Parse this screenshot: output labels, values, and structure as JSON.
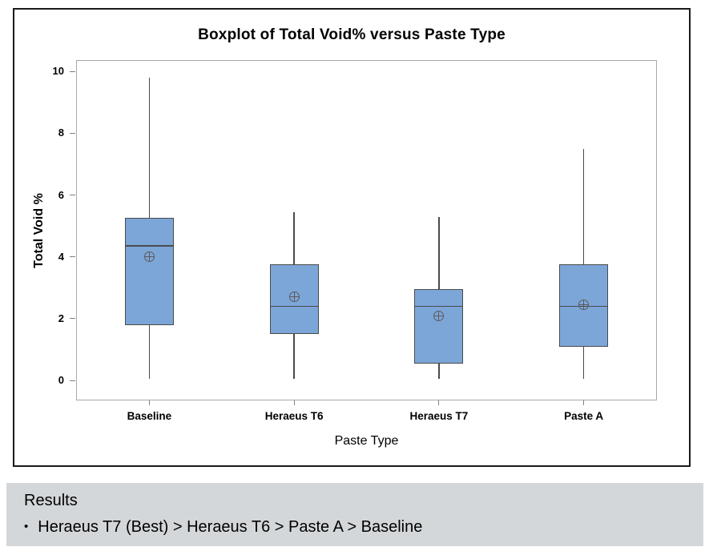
{
  "chart_data": {
    "type": "boxplot",
    "title": "Boxplot of Total Void% versus Paste Type",
    "xlabel": "Paste Type",
    "ylabel": "Total Void %",
    "ylim": [
      0,
      10
    ],
    "yticks": [
      0,
      2,
      4,
      6,
      8,
      10
    ],
    "grid": "off",
    "legend": "none",
    "categories": [
      "Baseline",
      "Heraeus T6",
      "Heraeus T7",
      "Paste A"
    ],
    "series": [
      {
        "name": "Baseline",
        "whisker_low": 0.05,
        "q1": 1.8,
        "median": 4.35,
        "q3": 5.25,
        "whisker_high": 9.8,
        "mean": 4.0
      },
      {
        "name": "Heraeus T6",
        "whisker_low": 0.05,
        "q1": 1.5,
        "median": 2.4,
        "q3": 3.75,
        "whisker_high": 5.45,
        "mean": 2.7
      },
      {
        "name": "Heraeus T7",
        "whisker_low": 0.05,
        "q1": 0.55,
        "median": 2.4,
        "q3": 2.95,
        "whisker_high": 5.3,
        "mean": 2.1
      },
      {
        "name": "Paste A",
        "whisker_low": 0.05,
        "q1": 1.1,
        "median": 2.4,
        "q3": 3.75,
        "whisker_high": 7.5,
        "mean": 2.45
      }
    ]
  },
  "results_panel": {
    "heading": "Results",
    "bullet": "•",
    "items": [
      "Heraeus T7 (Best) > Heraeus T6 > Paste A > Baseline"
    ]
  },
  "colors": {
    "box_fill": "#7da6d8",
    "box_border": "#4a4a4a",
    "whisker": "#4a4a4a",
    "median": "#4a4a4a",
    "mean_marker": "#5a5a5a",
    "plot_border": "#a8a8a8",
    "chart_border": "#1a1a1a",
    "tick": "#808080",
    "results_bg": "#d4d7d9",
    "text": "#000000"
  }
}
